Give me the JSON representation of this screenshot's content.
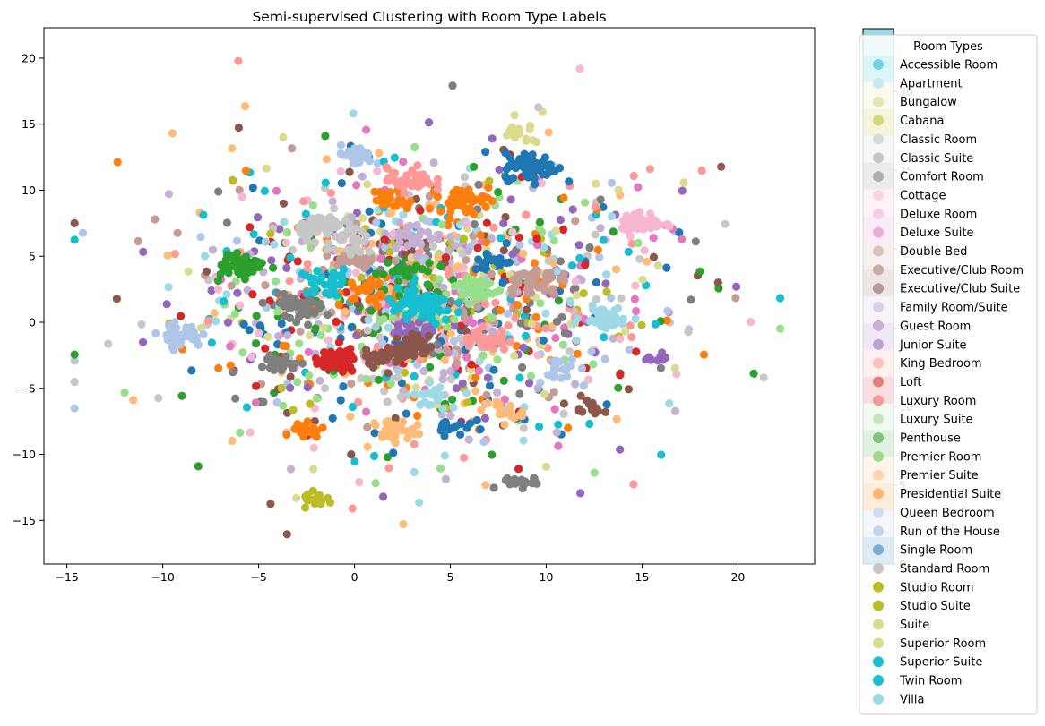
{
  "chart_data": {
    "type": "scatter",
    "title": "Semi-supervised Clustering with Room Type Labels",
    "xlabel": "",
    "ylabel": "",
    "xlim": [
      -16.2,
      24.0
    ],
    "ylim": [
      -18.3,
      22.3
    ],
    "xticks": [
      -15,
      -10,
      -5,
      0,
      5,
      10,
      15,
      20
    ],
    "yticks": [
      -15,
      -10,
      -5,
      0,
      5,
      10,
      15,
      20
    ],
    "grid": false,
    "legend": {
      "title": "Room Types",
      "placement": "outside-right"
    },
    "colorbar": {
      "min": 0,
      "max": 34,
      "ticks": [
        0,
        5,
        10,
        15,
        20,
        25,
        30
      ],
      "colormap": "tab20"
    },
    "series": [
      {
        "name": "Accessible Room",
        "color": "#6fd6e2"
      },
      {
        "name": "Apartment",
        "color": "#c7eaef"
      },
      {
        "name": "Bungalow",
        "color": "#e6e6b3"
      },
      {
        "name": "Cabana",
        "color": "#d6d67b"
      },
      {
        "name": "Classic Room",
        "color": "#dadada"
      },
      {
        "name": "Classic Suite",
        "color": "#c7c7c7"
      },
      {
        "name": "Comfort Room",
        "color": "#afafaf"
      },
      {
        "name": "Cottage",
        "color": "#f9d2e6"
      },
      {
        "name": "Deluxe Room",
        "color": "#f7cde4"
      },
      {
        "name": "Deluxe Suite",
        "color": "#ebaed8"
      },
      {
        "name": "Double Bed",
        "color": "#d9c0b8"
      },
      {
        "name": "Executive/Club Room",
        "color": "#c8ada6"
      },
      {
        "name": "Executive/Club Suite",
        "color": "#b69a94"
      },
      {
        "name": "Family Room/Suite",
        "color": "#dbd1e6"
      },
      {
        "name": "Guest Room",
        "color": "#c5b0d5"
      },
      {
        "name": "Junior Suite",
        "color": "#b9a3d3"
      },
      {
        "name": "King Bedroom",
        "color": "#ffbfbd"
      },
      {
        "name": "Loft",
        "color": "#e27d7c"
      },
      {
        "name": "Luxury Room",
        "color": "#f19a99"
      },
      {
        "name": "Luxury Suite",
        "color": "#c3e6bb"
      },
      {
        "name": "Penthouse",
        "color": "#7fc57b"
      },
      {
        "name": "Premier Room",
        "color": "#a2d889"
      },
      {
        "name": "Premier Suite",
        "color": "#ffd3ad"
      },
      {
        "name": "Presidential Suite",
        "color": "#ffb570"
      },
      {
        "name": "Queen Bedroom",
        "color": "#cfddf2"
      },
      {
        "name": "Run of the House",
        "color": "#c2d4ee"
      },
      {
        "name": "Single Room",
        "color": "#7aadd6"
      },
      {
        "name": "Standard Room",
        "color": "#c7c7c7"
      },
      {
        "name": "Studio Room",
        "color": "#bcbd22"
      },
      {
        "name": "Studio Suite",
        "color": "#bcbd22"
      },
      {
        "name": "Suite",
        "color": "#dbdb8d"
      },
      {
        "name": "Superior Room",
        "color": "#dbdb8d"
      },
      {
        "name": "Superior Suite",
        "color": "#17becf"
      },
      {
        "name": "Twin Room",
        "color": "#17becf"
      },
      {
        "name": "Villa",
        "color": "#9edae5"
      }
    ],
    "point_palette": [
      "#1f77b4",
      "#aec7e8",
      "#ff7f0e",
      "#ffbb78",
      "#2ca02c",
      "#98df8a",
      "#d62728",
      "#ff9896",
      "#9467bd",
      "#c5b0d5",
      "#8c564b",
      "#c49c94",
      "#e377c2",
      "#f7b6d2",
      "#7f7f7f",
      "#c7c7c7",
      "#bcbd22",
      "#dbdb8d",
      "#17becf",
      "#9edae5"
    ],
    "clusters": [
      {
        "x": 9.2,
        "y": 11.8,
        "c": 0,
        "n": 70,
        "s": 0.7
      },
      {
        "x": 7.2,
        "y": 4.6,
        "c": 0,
        "n": 25,
        "s": 0.5
      },
      {
        "x": 5.2,
        "y": -7.8,
        "c": 0,
        "n": 18,
        "s": 0.5
      },
      {
        "x": -9.1,
        "y": -1.0,
        "c": 1,
        "n": 40,
        "s": 0.55
      },
      {
        "x": 0.0,
        "y": 12.6,
        "c": 1,
        "n": 30,
        "s": 0.5
      },
      {
        "x": 10.6,
        "y": -3.5,
        "c": 1,
        "n": 18,
        "s": 0.6
      },
      {
        "x": 5.6,
        "y": 9.2,
        "c": 2,
        "n": 45,
        "s": 0.6
      },
      {
        "x": 2.1,
        "y": 9.3,
        "c": 2,
        "n": 25,
        "s": 0.6
      },
      {
        "x": -2.6,
        "y": -8.1,
        "c": 2,
        "n": 18,
        "s": 0.5
      },
      {
        "x": 0.8,
        "y": 2.3,
        "c": 2,
        "n": 30,
        "s": 0.8
      },
      {
        "x": 2.0,
        "y": -8.2,
        "c": 3,
        "n": 30,
        "s": 0.55
      },
      {
        "x": 7.5,
        "y": -6.8,
        "c": 3,
        "n": 18,
        "s": 0.6
      },
      {
        "x": -5.8,
        "y": 4.3,
        "c": 4,
        "n": 60,
        "s": 0.55
      },
      {
        "x": 2.5,
        "y": 3.8,
        "c": 4,
        "n": 25,
        "s": 0.8
      },
      {
        "x": 6.2,
        "y": 2.6,
        "c": 5,
        "n": 40,
        "s": 0.7
      },
      {
        "x": 3.8,
        "y": 0.4,
        "c": 5,
        "n": 25,
        "s": 0.8
      },
      {
        "x": -1.0,
        "y": -3.0,
        "c": 6,
        "n": 55,
        "s": 0.55
      },
      {
        "x": 2.9,
        "y": 10.8,
        "c": 7,
        "n": 45,
        "s": 0.6
      },
      {
        "x": 6.8,
        "y": -1.3,
        "c": 7,
        "n": 35,
        "s": 0.6
      },
      {
        "x": 3.4,
        "y": -0.6,
        "c": 8,
        "n": 30,
        "s": 0.6
      },
      {
        "x": 15.6,
        "y": -2.8,
        "c": 8,
        "n": 10,
        "s": 0.4
      },
      {
        "x": 3.2,
        "y": 6.6,
        "c": 9,
        "n": 30,
        "s": 0.7
      },
      {
        "x": 3.3,
        "y": -1.8,
        "c": 10,
        "n": 40,
        "s": 0.55
      },
      {
        "x": 1.4,
        "y": -2.6,
        "c": 10,
        "n": 35,
        "s": 0.55
      },
      {
        "x": 12.0,
        "y": -6.4,
        "c": 10,
        "n": 15,
        "s": 0.45
      },
      {
        "x": 9.2,
        "y": 3.2,
        "c": 11,
        "n": 45,
        "s": 0.7
      },
      {
        "x": 0.0,
        "y": 4.8,
        "c": 11,
        "n": 30,
        "s": 0.6
      },
      {
        "x": 15.0,
        "y": 7.5,
        "c": 13,
        "n": 40,
        "s": 0.55
      },
      {
        "x": -2.8,
        "y": 1.2,
        "c": 14,
        "n": 40,
        "s": 0.6
      },
      {
        "x": 8.7,
        "y": -12.2,
        "c": 14,
        "n": 20,
        "s": 0.5
      },
      {
        "x": -3.9,
        "y": -3.2,
        "c": 14,
        "n": 18,
        "s": 0.5
      },
      {
        "x": -1.6,
        "y": 7.3,
        "c": 15,
        "n": 50,
        "s": 0.65
      },
      {
        "x": 0.0,
        "y": 6.0,
        "c": 15,
        "n": 25,
        "s": 0.7
      },
      {
        "x": -1.9,
        "y": -13.5,
        "c": 16,
        "n": 18,
        "s": 0.4
      },
      {
        "x": 8.6,
        "y": 14.2,
        "c": 17,
        "n": 18,
        "s": 0.6
      },
      {
        "x": 3.4,
        "y": 1.2,
        "c": 18,
        "n": 70,
        "s": 0.9
      },
      {
        "x": -1.5,
        "y": 3.0,
        "c": 18,
        "n": 30,
        "s": 0.7
      },
      {
        "x": 13.0,
        "y": 0.4,
        "c": 19,
        "n": 45,
        "s": 0.55
      },
      {
        "x": 4.2,
        "y": -5.6,
        "c": 19,
        "n": 20,
        "s": 0.55
      }
    ]
  }
}
